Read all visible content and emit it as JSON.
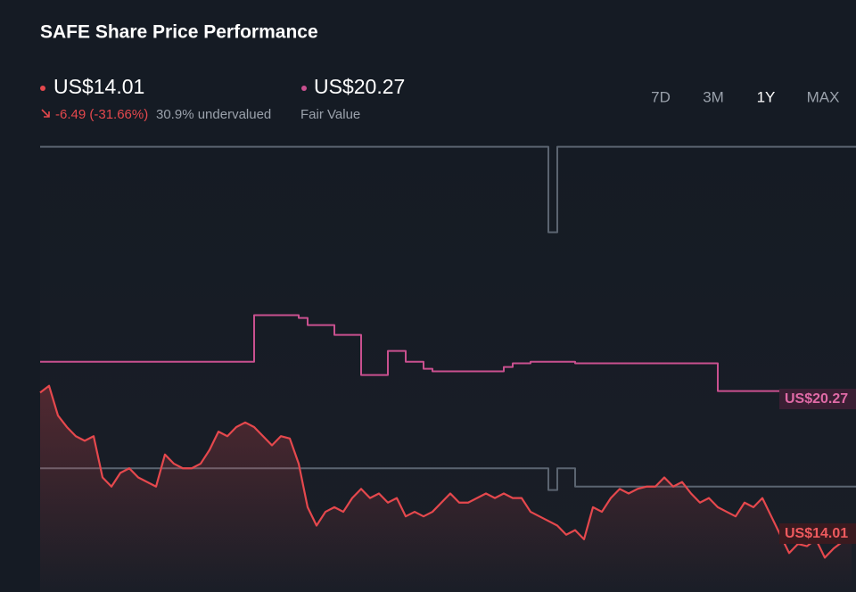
{
  "title": "SAFE Share Price Performance",
  "price_label": "US$14.01",
  "change": "-6.49 (-31.66%)",
  "valuation": "30.9% undervalued",
  "fair_value_label": "US$20.27",
  "fair_value_caption": "Fair Value",
  "ranges": [
    "7D",
    "3M",
    "1Y",
    "MAX"
  ],
  "selected_range": "1Y",
  "chart_data": {
    "type": "line",
    "ylim": [
      11.5,
      31.5
    ],
    "series": [
      {
        "color": "#5b6470",
        "step": true,
        "values": [
          30.93,
          30.93,
          30.93,
          30.93,
          30.93,
          30.93,
          30.93,
          30.93,
          30.93,
          30.93,
          30.93,
          30.93,
          30.93,
          30.93,
          30.93,
          30.93,
          30.93,
          30.93,
          30.93,
          30.93,
          30.93,
          30.93,
          30.93,
          30.93,
          30.93,
          30.93,
          30.93,
          30.93,
          30.93,
          30.93,
          30.93,
          30.93,
          30.93,
          30.93,
          30.93,
          30.93,
          30.93,
          30.93,
          30.93,
          30.93,
          30.93,
          30.93,
          30.93,
          30.93,
          30.93,
          30.93,
          30.93,
          30.93,
          30.93,
          30.93,
          30.93,
          30.93,
          30.93,
          30.93,
          30.93,
          30.93,
          30.93,
          27.2,
          30.93,
          30.93,
          30.93,
          30.93,
          30.93,
          30.93,
          30.93,
          30.93,
          30.93,
          30.93,
          30.93,
          30.93,
          30.93,
          30.93,
          30.93,
          30.93,
          30.93,
          30.93,
          30.93,
          30.93,
          30.93,
          30.93,
          30.93,
          30.93,
          30.93,
          30.93,
          30.93,
          30.93,
          30.93,
          30.93,
          30.93,
          30.93,
          30.93,
          30.93
        ]
      },
      {
        "color": "#5b6470",
        "step": true,
        "values": [
          16.9,
          16.9,
          16.9,
          16.9,
          16.9,
          16.9,
          16.9,
          16.9,
          16.9,
          16.9,
          16.9,
          16.9,
          16.9,
          16.9,
          16.9,
          16.9,
          16.9,
          16.9,
          16.9,
          16.9,
          16.9,
          16.9,
          16.9,
          16.9,
          16.9,
          16.9,
          16.9,
          16.9,
          16.9,
          16.9,
          16.9,
          16.9,
          16.9,
          16.9,
          16.9,
          16.9,
          16.9,
          16.9,
          16.9,
          16.9,
          16.9,
          16.9,
          16.9,
          16.9,
          16.9,
          16.9,
          16.9,
          16.9,
          16.9,
          16.9,
          16.9,
          16.9,
          16.9,
          16.9,
          16.9,
          16.9,
          16.9,
          15.95,
          16.9,
          16.9,
          16.1,
          16.1,
          16.1,
          16.1,
          16.1,
          16.1,
          16.1,
          16.1,
          16.1,
          16.1,
          16.1,
          16.1,
          16.1,
          16.1,
          16.1,
          16.1,
          16.1,
          16.1,
          16.1,
          16.1,
          16.1,
          16.1,
          16.1,
          16.1,
          16.1,
          16.1,
          16.1,
          16.1,
          16.1,
          16.1,
          16.1,
          16.1
        ]
      },
      {
        "name": "Fair Value",
        "color": "#c9508f",
        "step": true,
        "values": [
          21.55,
          21.55,
          21.55,
          21.55,
          21.55,
          21.55,
          21.55,
          21.55,
          21.55,
          21.55,
          21.55,
          21.55,
          21.55,
          21.55,
          21.55,
          21.55,
          21.55,
          21.55,
          21.55,
          21.55,
          21.55,
          21.55,
          21.55,
          21.55,
          23.58,
          23.58,
          23.58,
          23.58,
          23.58,
          23.46,
          23.15,
          23.15,
          23.15,
          22.72,
          22.72,
          22.72,
          20.97,
          20.97,
          20.97,
          22.02,
          22.02,
          21.55,
          21.55,
          21.24,
          21.13,
          21.13,
          21.13,
          21.13,
          21.13,
          21.13,
          21.13,
          21.13,
          21.32,
          21.48,
          21.48,
          21.55,
          21.55,
          21.55,
          21.55,
          21.55,
          21.48,
          21.48,
          21.48,
          21.48,
          21.48,
          21.48,
          21.48,
          21.48,
          21.48,
          21.48,
          21.48,
          21.48,
          21.48,
          21.48,
          21.48,
          21.48,
          20.27,
          20.27,
          20.27,
          20.27,
          20.27,
          20.27,
          20.27,
          20.27,
          20.27,
          20.27,
          20.27,
          20.27,
          20.27,
          20.27,
          20.27,
          20.27
        ]
      },
      {
        "color": "#e5484d",
        "area": true,
        "values": [
          20.2,
          20.5,
          19.2,
          18.7,
          18.3,
          18.1,
          18.3,
          16.5,
          16.1,
          16.7,
          16.9,
          16.5,
          16.3,
          16.1,
          17.5,
          17.1,
          16.9,
          16.9,
          17.1,
          17.7,
          18.5,
          18.3,
          18.7,
          18.9,
          18.7,
          18.3,
          17.9,
          18.3,
          18.2,
          17.1,
          15.2,
          14.4,
          15.0,
          15.2,
          15.0,
          15.6,
          16.0,
          15.6,
          15.8,
          15.4,
          15.6,
          14.8,
          15.0,
          14.8,
          15.0,
          15.4,
          15.8,
          15.4,
          15.4,
          15.6,
          15.8,
          15.6,
          15.8,
          15.6,
          15.6,
          15.0,
          14.8,
          14.6,
          14.4,
          14.0,
          14.2,
          13.8,
          15.2,
          15.0,
          15.6,
          16.0,
          15.8,
          16.0,
          16.1,
          16.1,
          16.5,
          16.1,
          16.3,
          15.8,
          15.4,
          15.6,
          15.2,
          15.0,
          14.8,
          15.4,
          15.2,
          15.6,
          14.8,
          14.0,
          13.2,
          13.6,
          13.5,
          13.8,
          13.0,
          13.4,
          13.7,
          14.01
        ]
      }
    ]
  }
}
